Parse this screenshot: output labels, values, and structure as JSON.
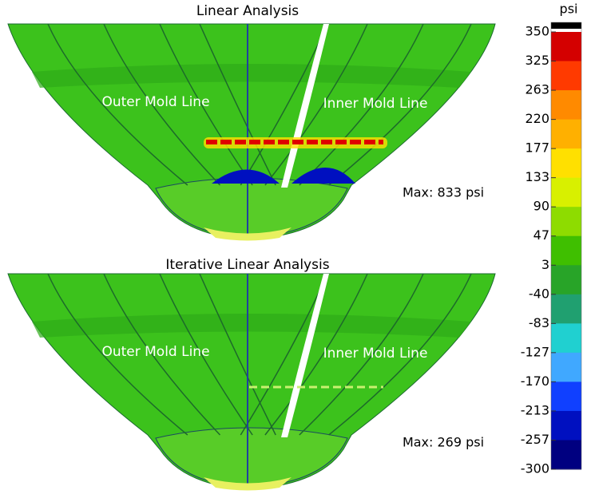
{
  "panels": [
    {
      "title": "Linear Analysis",
      "labels": [
        "Outer Mold Line",
        "Inner Mold Line"
      ],
      "max": "Max: 833 psi"
    },
    {
      "title": "Iterative Linear Analysis",
      "labels": [
        "Outer Mold Line",
        "Inner Mold Line"
      ],
      "max": "Max: 269 psi"
    }
  ],
  "legend": {
    "unit": "psi",
    "ticks": [
      "350",
      "325",
      "263",
      "220",
      "177",
      "133",
      "90",
      "47",
      "3",
      "-40",
      "-83",
      "-127",
      "-170",
      "-213",
      "-257",
      "-300"
    ],
    "colors": [
      "#d40000",
      "#ff3a00",
      "#ff8a00",
      "#ffb000",
      "#ffe000",
      "#d8f000",
      "#8edc00",
      "#3fbf00",
      "#28a428",
      "#20a070",
      "#20d0d0",
      "#40a8ff",
      "#1040ff",
      "#0010c0",
      "#000080"
    ]
  }
}
